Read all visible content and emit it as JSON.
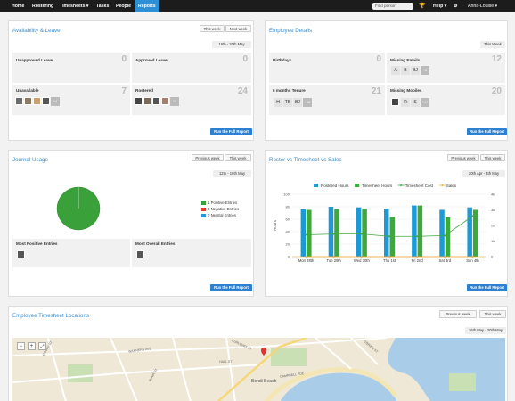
{
  "nav": {
    "items": [
      "Home",
      "Rostering",
      "Timesheets",
      "Tasks",
      "People",
      "Reports"
    ],
    "active": "Reports",
    "search_placeholder": "Find person",
    "help": "Help",
    "user": "Anna-Louise"
  },
  "availability": {
    "title": "Availability & Leave",
    "buttons": [
      "This week",
      "Next week"
    ],
    "date_range": "16th - 20th May",
    "cells": [
      {
        "label": "Unapproved Leave",
        "count": "0"
      },
      {
        "label": "Approved Leave",
        "count": "0"
      },
      {
        "label": "Unavailable",
        "count": "7",
        "more": "+4"
      },
      {
        "label": "Rostered",
        "count": "24",
        "more": "+2"
      }
    ],
    "run_report": "Run the Full Report"
  },
  "employee": {
    "title": "Employee Details",
    "buttons": [
      "This Week"
    ],
    "cells": [
      {
        "label": "Birthdays",
        "count": "0"
      },
      {
        "label": "Missing Emails",
        "count": "12",
        "initials": [
          "A",
          "B",
          "BJ"
        ],
        "more": "+8"
      },
      {
        "label": "6 months Tenure",
        "count": "21",
        "initials": [
          "H",
          "TB",
          "BJ"
        ],
        "more": "+18"
      },
      {
        "label": "Missing Mobiles",
        "count": "20",
        "more": "+17"
      }
    ],
    "run_report": "Run the Full Report"
  },
  "journal": {
    "title": "Journal Usage",
    "buttons": [
      "Previous week",
      "This week"
    ],
    "date_range": "12th - 16th May",
    "legend": [
      {
        "label": "1 Positive Entries",
        "color": "#3aa03a"
      },
      {
        "label": "0 Negative Entries",
        "color": "#d9452b"
      },
      {
        "label": "0 Neutral Entries",
        "color": "#2a97d1"
      }
    ],
    "most_positive": "Most Positive Entries",
    "most_overall": "Most Overall Entries",
    "run_report": "Run the Full Report"
  },
  "roster": {
    "title": "Roster vs Timesheet vs Sales",
    "buttons": [
      "Previous week",
      "This week"
    ],
    "date_range": "20th Apr - 4th May",
    "run_report": "Run the Full Report"
  },
  "chart_data": {
    "type": "bar",
    "categories": [
      "Mon 28th",
      "Tue 29th",
      "Wed 30th",
      "Thu 1st",
      "Fri 2nd",
      "Sat 3rd",
      "Sun 4th"
    ],
    "series": [
      {
        "name": "Rostered Hours",
        "type": "bar",
        "color": "#1c9ad6",
        "values": [
          76,
          80,
          79,
          77,
          82,
          75,
          79
        ]
      },
      {
        "name": "Timesheet Hours",
        "type": "bar",
        "color": "#3ea83e",
        "values": [
          75,
          76,
          77,
          64,
          82,
          63,
          75
        ]
      },
      {
        "name": "Timesheet Cost",
        "type": "line",
        "color": "#3ea83e",
        "axis": "right",
        "values": [
          1400,
          1450,
          1450,
          1300,
          1300,
          1350,
          2600
        ]
      },
      {
        "name": "Sales",
        "type": "line",
        "color": "#f0b040",
        "axis": "right",
        "values": [
          0,
          0,
          0,
          0,
          0,
          0,
          0
        ]
      }
    ],
    "ylabel": "Hours",
    "ylim": [
      0,
      100
    ],
    "yticks": [
      "100",
      "80",
      "60",
      "40",
      "20",
      "0"
    ],
    "y2lim": [
      0,
      4000
    ],
    "y2ticks": [
      "4k",
      "3k",
      "2k",
      "1k",
      "0"
    ],
    "grid": true,
    "legend": "top"
  },
  "locations": {
    "title": "Employee Timesheet Locations",
    "buttons": [
      "Previous week",
      "This week"
    ],
    "date_range": "16th May - 20th May",
    "map_labels": [
      "Bondi Beach",
      "CURLEWIS ST",
      "CAMPBELL PDE",
      "GOULD ST",
      "HALL ST",
      "WARNERS AVE",
      "BLAIR ST",
      "O'BRIEN ST"
    ]
  }
}
